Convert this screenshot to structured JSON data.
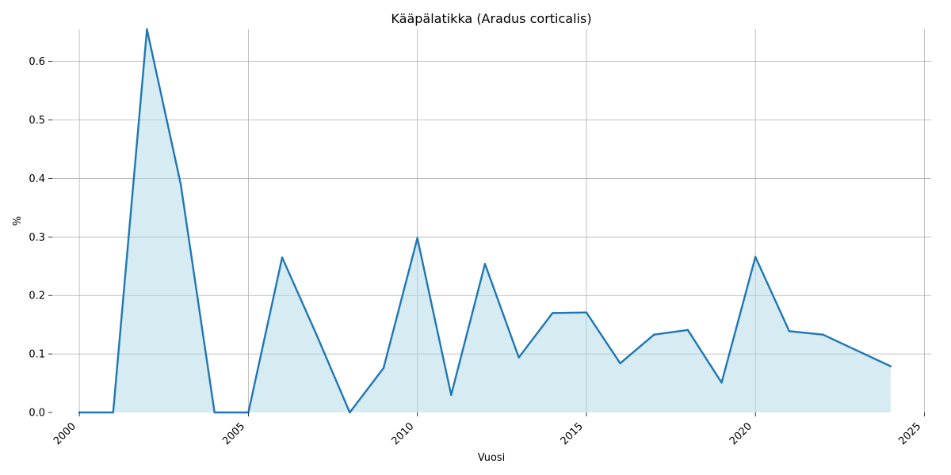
{
  "chart_data": {
    "type": "area",
    "title": "Kääpälatikka (Aradus corticalis)",
    "xlabel": "Vuosi",
    "ylabel": "%",
    "xlim": [
      1999.2,
      2025.2
    ],
    "ylim": [
      0,
      0.655
    ],
    "xticks": [
      2000,
      2005,
      2010,
      2015,
      2020,
      2025
    ],
    "xtick_labels": [
      "2000",
      "2005",
      "2010",
      "2015",
      "2020",
      "2025"
    ],
    "yticks": [
      0.0,
      0.1,
      0.2,
      0.3,
      0.4,
      0.5,
      0.6
    ],
    "ytick_labels": [
      "0.0",
      "0.1",
      "0.2",
      "0.3",
      "0.4",
      "0.5",
      "0.6"
    ],
    "grid": true,
    "x": [
      2000,
      2001,
      2002,
      2003,
      2004,
      2005,
      2006,
      2007,
      2008,
      2009,
      2010,
      2011,
      2012,
      2013,
      2014,
      2015,
      2016,
      2017,
      2018,
      2019,
      2020,
      2021,
      2022,
      2023,
      2024
    ],
    "series": [
      {
        "values": [
          0,
          0,
          0.655,
          0.39,
          0,
          0,
          0.265,
          0.135,
          0,
          0.076,
          0.298,
          0.03,
          0.254,
          0.094,
          0.17,
          0.171,
          0.084,
          0.133,
          0.141,
          0.051,
          0.266,
          0.139,
          0.133,
          0.106,
          0.079
        ],
        "line_color": "#1f77b4",
        "fill_color": "#add8e6"
      }
    ]
  }
}
